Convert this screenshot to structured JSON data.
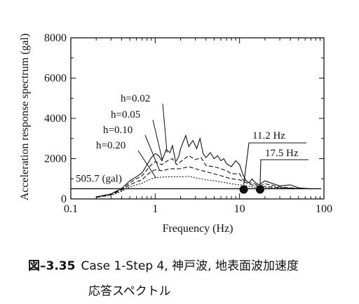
{
  "chart_data": {
    "type": "line",
    "xlabel": "Frequency (Hz)",
    "ylabel": "Acceleration response spectrum (gal)",
    "xscale": "log",
    "xlim": [
      0.1,
      100
    ],
    "ylim": [
      0,
      8000
    ],
    "x_ticks": [
      0.1,
      1,
      10,
      100
    ],
    "x_tick_labels": [
      "0.1",
      "1",
      "10",
      "100"
    ],
    "y_ticks": [
      0,
      2000,
      4000,
      6000,
      8000
    ],
    "y_tick_labels": [
      "0",
      "2000",
      "4000",
      "6000",
      "8000"
    ],
    "grid": false,
    "series": [
      {
        "name": "h=0.02",
        "style": "solid",
        "points": [
          [
            0.2,
            100
          ],
          [
            0.3,
            250
          ],
          [
            0.4,
            520
          ],
          [
            0.5,
            900
          ],
          [
            0.6,
            1100
          ],
          [
            0.7,
            1300
          ],
          [
            0.8,
            1700
          ],
          [
            0.9,
            2050
          ],
          [
            1.0,
            2250
          ],
          [
            1.1,
            2150
          ],
          [
            1.2,
            1900
          ],
          [
            1.35,
            2450
          ],
          [
            1.5,
            2300
          ],
          [
            1.6,
            2650
          ],
          [
            1.75,
            1850
          ],
          [
            1.9,
            2100
          ],
          [
            2.0,
            2500
          ],
          [
            2.3,
            3150
          ],
          [
            2.5,
            2600
          ],
          [
            2.8,
            2900
          ],
          [
            3.1,
            2500
          ],
          [
            3.4,
            3000
          ],
          [
            3.7,
            2250
          ],
          [
            4.0,
            2050
          ],
          [
            4.5,
            2300
          ],
          [
            5.0,
            2000
          ],
          [
            5.5,
            2150
          ],
          [
            6.0,
            1900
          ],
          [
            6.5,
            2000
          ],
          [
            7.0,
            1750
          ],
          [
            8.0,
            1600
          ],
          [
            9.0,
            1900
          ],
          [
            10,
            1700
          ],
          [
            11,
            1200
          ],
          [
            12,
            900
          ],
          [
            13,
            800
          ],
          [
            14,
            1000
          ],
          [
            15,
            850
          ],
          [
            17,
            700
          ],
          [
            20,
            900
          ],
          [
            25,
            750
          ],
          [
            30,
            650
          ],
          [
            40,
            700
          ],
          [
            50,
            550
          ],
          [
            70,
            500
          ]
        ]
      },
      {
        "name": "h=0.05",
        "style": "dashed",
        "points": [
          [
            0.2,
            90
          ],
          [
            0.3,
            230
          ],
          [
            0.4,
            480
          ],
          [
            0.5,
            800
          ],
          [
            0.6,
            1000
          ],
          [
            0.7,
            1150
          ],
          [
            0.8,
            1450
          ],
          [
            0.9,
            1700
          ],
          [
            1.0,
            1850
          ],
          [
            1.2,
            1700
          ],
          [
            1.4,
            1900
          ],
          [
            1.6,
            2000
          ],
          [
            1.8,
            1700
          ],
          [
            2.0,
            1850
          ],
          [
            2.5,
            2150
          ],
          [
            3.0,
            1950
          ],
          [
            3.5,
            2050
          ],
          [
            4.0,
            1650
          ],
          [
            5.0,
            1600
          ],
          [
            6.0,
            1500
          ],
          [
            7.0,
            1400
          ],
          [
            8.0,
            1250
          ],
          [
            10,
            1250
          ],
          [
            11,
            950
          ],
          [
            13,
            800
          ],
          [
            15,
            750
          ],
          [
            17,
            650
          ],
          [
            20,
            750
          ],
          [
            30,
            600
          ],
          [
            50,
            520
          ],
          [
            70,
            500
          ]
        ]
      },
      {
        "name": "h=0.10",
        "style": "dashed",
        "points": [
          [
            0.2,
            80
          ],
          [
            0.3,
            210
          ],
          [
            0.4,
            430
          ],
          [
            0.5,
            700
          ],
          [
            0.6,
            850
          ],
          [
            0.7,
            950
          ],
          [
            0.8,
            1200
          ],
          [
            0.9,
            1350
          ],
          [
            1.0,
            1450
          ],
          [
            1.2,
            1400
          ],
          [
            1.5,
            1500
          ],
          [
            2.0,
            1500
          ],
          [
            2.5,
            1600
          ],
          [
            3.0,
            1500
          ],
          [
            4.0,
            1350
          ],
          [
            5.0,
            1250
          ],
          [
            6.0,
            1150
          ],
          [
            8.0,
            1000
          ],
          [
            10,
            950
          ],
          [
            12,
            800
          ],
          [
            15,
            650
          ],
          [
            20,
            620
          ],
          [
            30,
            560
          ],
          [
            50,
            510
          ],
          [
            70,
            505
          ]
        ]
      },
      {
        "name": "h=0.20",
        "style": "dotted",
        "points": [
          [
            0.2,
            70
          ],
          [
            0.3,
            180
          ],
          [
            0.4,
            380
          ],
          [
            0.5,
            600
          ],
          [
            0.6,
            700
          ],
          [
            0.7,
            780
          ],
          [
            0.8,
            900
          ],
          [
            0.9,
            1000
          ],
          [
            1.0,
            1050
          ],
          [
            1.3,
            1100
          ],
          [
            1.6,
            1100
          ],
          [
            2.0,
            1100
          ],
          [
            2.5,
            1120
          ],
          [
            3.0,
            1050
          ],
          [
            4.0,
            950
          ],
          [
            5.0,
            900
          ],
          [
            6.0,
            850
          ],
          [
            8.0,
            750
          ],
          [
            10,
            700
          ],
          [
            12,
            650
          ],
          [
            15,
            580
          ],
          [
            20,
            560
          ],
          [
            30,
            530
          ],
          [
            50,
            510
          ],
          [
            70,
            505
          ]
        ]
      }
    ],
    "reference_line": {
      "value": 505.7,
      "label": "505.7 (gal)"
    },
    "markers": [
      {
        "x": 11.2,
        "label": "11.2 Hz"
      },
      {
        "x": 17.5,
        "label": "17.5 Hz"
      }
    ]
  },
  "caption": {
    "figure_number": "図–3.35",
    "line1": "Case 1-Step 4, 神戸波, 地表面波加速度",
    "line2": "応答スペクトル"
  }
}
